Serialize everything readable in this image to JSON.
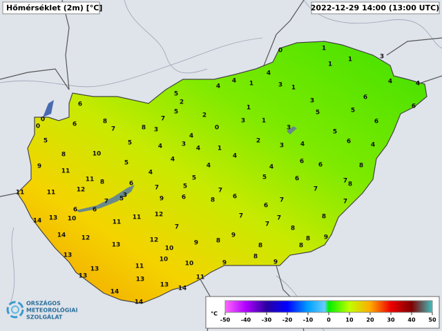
{
  "header": {
    "title": "Hőmérséklet (2m) [°C]",
    "time": "2022-12-29 14:00 (13:00 UTC)"
  },
  "legend": {
    "unit": "°C",
    "ticks": [
      -50,
      -40,
      -30,
      -20,
      -10,
      0,
      10,
      20,
      30,
      40,
      50
    ]
  },
  "logo": [
    "ORSZÁGOS",
    "METEOROLÓGIAI",
    "SZOLGÁLAT"
  ],
  "stations": [
    0,
    0,
    5,
    6,
    6,
    8,
    7,
    8,
    3,
    7,
    5,
    2,
    5,
    4,
    2,
    0,
    4,
    3,
    4,
    1,
    4,
    1,
    4,
    0,
    1,
    1,
    1,
    3,
    3,
    1,
    1,
    3,
    1,
    3,
    5,
    3,
    3,
    2,
    4,
    5,
    6,
    4,
    4,
    6,
    6,
    5,
    6,
    4,
    4,
    4,
    4,
    4,
    5,
    5,
    4,
    6,
    5,
    10,
    8,
    9,
    11,
    11,
    8,
    12,
    11,
    11,
    7,
    5,
    5,
    7,
    6,
    8,
    6,
    9,
    3,
    7,
    6,
    6,
    10,
    13,
    14,
    11,
    11,
    12,
    7,
    4,
    6,
    6,
    8,
    7,
    8,
    7,
    6,
    5,
    7,
    8,
    7,
    6,
    7,
    7,
    7,
    8,
    8,
    9,
    8,
    9,
    8,
    9,
    10,
    12,
    13,
    12,
    14,
    13,
    13,
    11,
    10,
    10,
    9,
    8,
    8,
    9,
    13,
    13,
    13,
    11,
    14,
    14,
    14
  ]
}
